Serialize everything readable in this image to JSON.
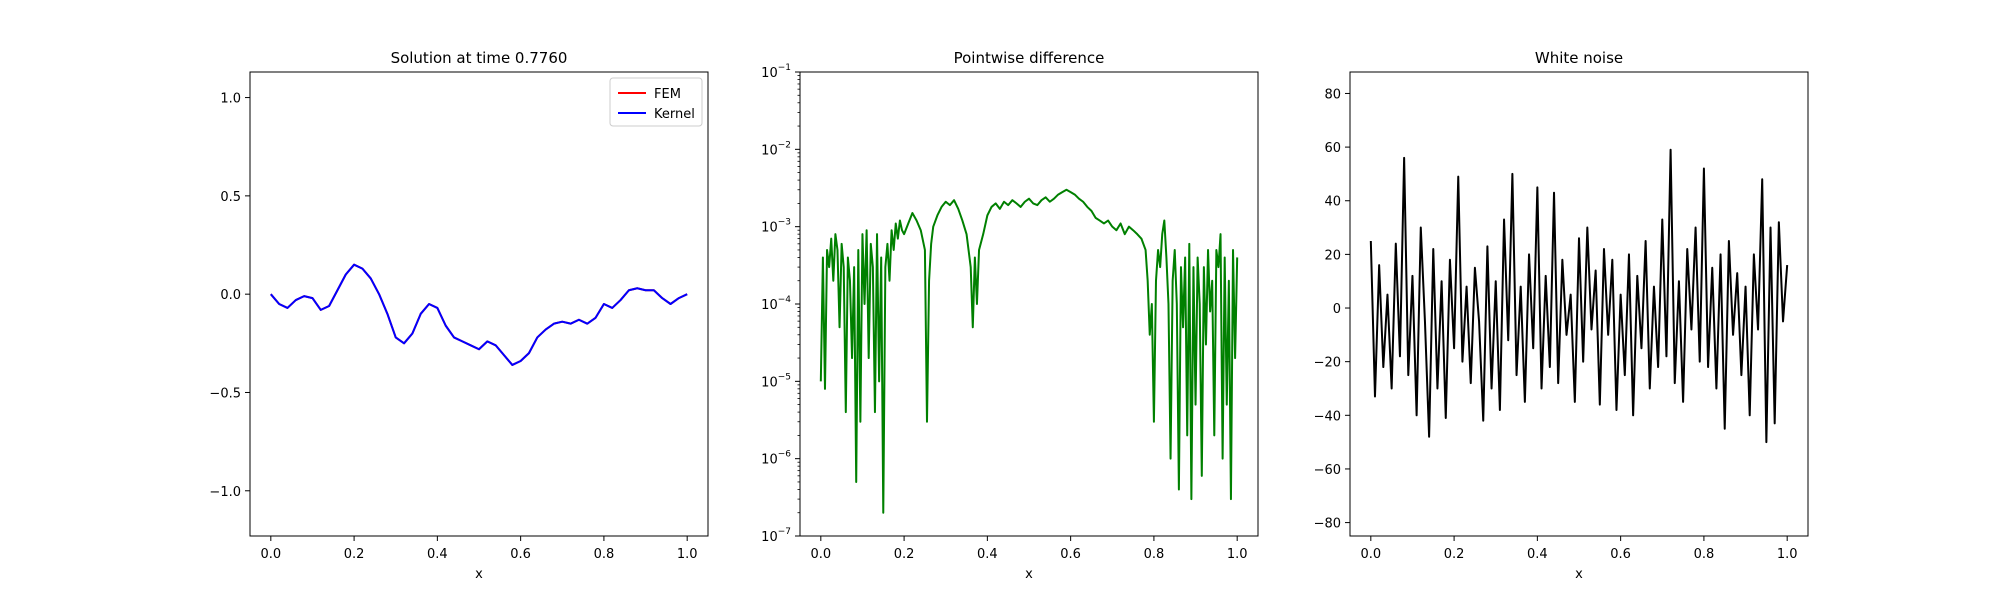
{
  "chart_data": [
    {
      "type": "line",
      "title": "Solution at time 0.7760",
      "xlabel": "x",
      "ylabel": "",
      "xlim": [
        -0.05,
        1.05
      ],
      "ylim": [
        -1.23,
        1.13
      ],
      "xticks": [
        0.0,
        0.2,
        0.4,
        0.6,
        0.8,
        1.0
      ],
      "xtick_labels": [
        "0.0",
        "0.2",
        "0.4",
        "0.6",
        "0.8",
        "1.0"
      ],
      "yticks": [
        -1.0,
        -0.5,
        0.0,
        0.5,
        1.0
      ],
      "ytick_labels": [
        "−1.0",
        "−0.5",
        "0.0",
        "0.5",
        "1.0"
      ],
      "grid": false,
      "legend_position": "top-right",
      "series": [
        {
          "name": "FEM",
          "color": "#ff0000",
          "x": [
            0.0,
            0.02,
            0.04,
            0.06,
            0.08,
            0.1,
            0.12,
            0.14,
            0.16,
            0.18,
            0.2,
            0.22,
            0.24,
            0.26,
            0.28,
            0.3,
            0.32,
            0.34,
            0.36,
            0.38,
            0.4,
            0.42,
            0.44,
            0.46,
            0.48,
            0.5,
            0.52,
            0.54,
            0.56,
            0.58,
            0.6,
            0.62,
            0.64,
            0.66,
            0.68,
            0.7,
            0.72,
            0.74,
            0.76,
            0.78,
            0.8,
            0.82,
            0.84,
            0.86,
            0.88,
            0.9,
            0.92,
            0.94,
            0.96,
            0.98,
            1.0
          ],
          "y": [
            0.0,
            -0.05,
            -0.07,
            -0.03,
            -0.01,
            -0.02,
            -0.08,
            -0.06,
            0.02,
            0.1,
            0.15,
            0.13,
            0.08,
            0.0,
            -0.1,
            -0.22,
            -0.25,
            -0.2,
            -0.1,
            -0.05,
            -0.07,
            -0.16,
            -0.22,
            -0.24,
            -0.26,
            -0.28,
            -0.24,
            -0.26,
            -0.31,
            -0.36,
            -0.34,
            -0.3,
            -0.22,
            -0.18,
            -0.15,
            -0.14,
            -0.15,
            -0.13,
            -0.15,
            -0.12,
            -0.05,
            -0.07,
            -0.03,
            0.02,
            0.03,
            0.02,
            0.02,
            -0.02,
            -0.05,
            -0.02,
            0.0
          ]
        },
        {
          "name": "Kernel",
          "color": "#0000ff",
          "x": [
            0.0,
            0.02,
            0.04,
            0.06,
            0.08,
            0.1,
            0.12,
            0.14,
            0.16,
            0.18,
            0.2,
            0.22,
            0.24,
            0.26,
            0.28,
            0.3,
            0.32,
            0.34,
            0.36,
            0.38,
            0.4,
            0.42,
            0.44,
            0.46,
            0.48,
            0.5,
            0.52,
            0.54,
            0.56,
            0.58,
            0.6,
            0.62,
            0.64,
            0.66,
            0.68,
            0.7,
            0.72,
            0.74,
            0.76,
            0.78,
            0.8,
            0.82,
            0.84,
            0.86,
            0.88,
            0.9,
            0.92,
            0.94,
            0.96,
            0.98,
            1.0
          ],
          "y": [
            0.0,
            -0.05,
            -0.07,
            -0.03,
            -0.01,
            -0.02,
            -0.08,
            -0.06,
            0.02,
            0.1,
            0.15,
            0.13,
            0.08,
            0.0,
            -0.1,
            -0.22,
            -0.25,
            -0.2,
            -0.1,
            -0.05,
            -0.07,
            -0.16,
            -0.22,
            -0.24,
            -0.26,
            -0.28,
            -0.24,
            -0.26,
            -0.31,
            -0.36,
            -0.34,
            -0.3,
            -0.22,
            -0.18,
            -0.15,
            -0.14,
            -0.15,
            -0.13,
            -0.15,
            -0.12,
            -0.05,
            -0.07,
            -0.03,
            0.02,
            0.03,
            0.02,
            0.02,
            -0.02,
            -0.05,
            -0.02,
            0.0
          ]
        }
      ]
    },
    {
      "type": "line",
      "title": "Pointwise difference",
      "xlabel": "x",
      "ylabel": "",
      "yscale": "log",
      "xlim": [
        -0.05,
        1.05
      ],
      "ylim": [
        1e-07,
        0.1
      ],
      "xticks": [
        0.0,
        0.2,
        0.4,
        0.6,
        0.8,
        1.0
      ],
      "xtick_labels": [
        "0.0",
        "0.2",
        "0.4",
        "0.6",
        "0.8",
        "1.0"
      ],
      "yticks": [
        1e-07,
        1e-06,
        1e-05,
        0.0001,
        0.001,
        0.01,
        0.1
      ],
      "ytick_bases": [
        "10",
        "10",
        "10",
        "10",
        "10",
        "10",
        "10"
      ],
      "ytick_exponents": [
        "−7",
        "−6",
        "−5",
        "−4",
        "−3",
        "−2",
        "−1"
      ],
      "grid": false,
      "series": [
        {
          "color": "#008000",
          "x": [
            0.0,
            0.005,
            0.01,
            0.015,
            0.02,
            0.025,
            0.03,
            0.035,
            0.04,
            0.045,
            0.05,
            0.055,
            0.06,
            0.065,
            0.07,
            0.075,
            0.08,
            0.085,
            0.09,
            0.095,
            0.1,
            0.105,
            0.11,
            0.115,
            0.12,
            0.125,
            0.13,
            0.135,
            0.14,
            0.145,
            0.15,
            0.155,
            0.16,
            0.165,
            0.17,
            0.175,
            0.18,
            0.185,
            0.19,
            0.195,
            0.2,
            0.21,
            0.22,
            0.23,
            0.24,
            0.25,
            0.255,
            0.26,
            0.265,
            0.27,
            0.28,
            0.29,
            0.3,
            0.31,
            0.32,
            0.33,
            0.34,
            0.35,
            0.36,
            0.365,
            0.37,
            0.375,
            0.38,
            0.39,
            0.4,
            0.41,
            0.42,
            0.43,
            0.44,
            0.45,
            0.46,
            0.47,
            0.48,
            0.49,
            0.5,
            0.51,
            0.52,
            0.53,
            0.54,
            0.55,
            0.56,
            0.57,
            0.58,
            0.59,
            0.6,
            0.61,
            0.62,
            0.63,
            0.64,
            0.65,
            0.66,
            0.67,
            0.68,
            0.69,
            0.7,
            0.71,
            0.72,
            0.73,
            0.74,
            0.75,
            0.76,
            0.77,
            0.78,
            0.785,
            0.79,
            0.795,
            0.8,
            0.805,
            0.81,
            0.815,
            0.82,
            0.825,
            0.83,
            0.835,
            0.84,
            0.845,
            0.85,
            0.855,
            0.86,
            0.865,
            0.87,
            0.875,
            0.88,
            0.885,
            0.89,
            0.895,
            0.9,
            0.905,
            0.91,
            0.915,
            0.92,
            0.925,
            0.93,
            0.935,
            0.94,
            0.945,
            0.95,
            0.955,
            0.96,
            0.965,
            0.97,
            0.975,
            0.98,
            0.985,
            0.99,
            0.995,
            1.0
          ],
          "y": [
            1e-05,
            0.0004,
            8e-06,
            0.0005,
            0.0003,
            0.0007,
            0.0002,
            0.0008,
            0.0005,
            5e-05,
            0.0006,
            0.0003,
            4e-06,
            0.0004,
            0.0002,
            2e-05,
            0.0003,
            5e-07,
            0.0005,
            3e-06,
            0.0008,
            0.0001,
            0.0009,
            2e-05,
            0.0006,
            0.0003,
            4e-06,
            0.0008,
            1e-05,
            0.0004,
            2e-07,
            0.0003,
            0.0006,
            0.0002,
            0.0009,
            0.0005,
            0.0011,
            0.0007,
            0.0012,
            0.0009,
            0.0008,
            0.0011,
            0.0015,
            0.0012,
            0.0009,
            0.0005,
            3e-06,
            0.0002,
            0.0006,
            0.001,
            0.0014,
            0.0018,
            0.0021,
            0.0019,
            0.0022,
            0.0017,
            0.0012,
            0.0008,
            0.0003,
            5e-05,
            0.0004,
            0.0001,
            0.0005,
            0.0008,
            0.0014,
            0.0018,
            0.002,
            0.0017,
            0.0021,
            0.0019,
            0.0022,
            0.002,
            0.0018,
            0.0021,
            0.0023,
            0.002,
            0.0019,
            0.0022,
            0.0024,
            0.0021,
            0.0023,
            0.0026,
            0.0028,
            0.003,
            0.0028,
            0.0026,
            0.0023,
            0.0021,
            0.0018,
            0.0016,
            0.0013,
            0.0012,
            0.0011,
            0.0012,
            0.001,
            0.0009,
            0.0011,
            0.0008,
            0.001,
            0.0009,
            0.0008,
            0.0007,
            0.0005,
            0.0002,
            4e-05,
            0.0001,
            3e-06,
            0.0002,
            0.0005,
            0.0003,
            0.0008,
            0.0012,
            0.0004,
            0.0001,
            1e-06,
            0.0002,
            0.0005,
            0.0001,
            4e-07,
            0.0003,
            5e-05,
            0.0004,
            2e-06,
            0.0006,
            3e-07,
            0.0003,
            5e-06,
            0.0004,
            0.0001,
            6e-07,
            0.0003,
            3e-05,
            0.0005,
            8e-05,
            0.0002,
            2e-06,
            0.0005,
            0.0003,
            0.0008,
            1e-06,
            0.0004,
            5e-06,
            0.0002,
            3e-07,
            0.0005,
            2e-05,
            0.0004
          ]
        }
      ]
    },
    {
      "type": "line",
      "title": "White noise",
      "xlabel": "x",
      "ylabel": "",
      "xlim": [
        -0.05,
        1.05
      ],
      "ylim": [
        -85,
        88
      ],
      "xticks": [
        0.0,
        0.2,
        0.4,
        0.6,
        0.8,
        1.0
      ],
      "xtick_labels": [
        "0.0",
        "0.2",
        "0.4",
        "0.6",
        "0.8",
        "1.0"
      ],
      "yticks": [
        -80,
        -60,
        -40,
        -20,
        0,
        20,
        40,
        60,
        80
      ],
      "ytick_labels": [
        "−80",
        "−60",
        "−40",
        "−20",
        "0",
        "20",
        "40",
        "60",
        "80"
      ],
      "grid": false,
      "series": [
        {
          "color": "#000000",
          "x": [
            0.0,
            0.01,
            0.02,
            0.03,
            0.04,
            0.05,
            0.06,
            0.07,
            0.08,
            0.09,
            0.1,
            0.11,
            0.12,
            0.13,
            0.14,
            0.15,
            0.16,
            0.17,
            0.18,
            0.19,
            0.2,
            0.21,
            0.22,
            0.23,
            0.24,
            0.25,
            0.26,
            0.27,
            0.28,
            0.29,
            0.3,
            0.31,
            0.32,
            0.33,
            0.34,
            0.35,
            0.36,
            0.37,
            0.38,
            0.39,
            0.4,
            0.41,
            0.42,
            0.43,
            0.44,
            0.45,
            0.46,
            0.47,
            0.48,
            0.49,
            0.5,
            0.51,
            0.52,
            0.53,
            0.54,
            0.55,
            0.56,
            0.57,
            0.58,
            0.59,
            0.6,
            0.61,
            0.62,
            0.63,
            0.64,
            0.65,
            0.66,
            0.67,
            0.68,
            0.69,
            0.7,
            0.71,
            0.72,
            0.73,
            0.74,
            0.75,
            0.76,
            0.77,
            0.78,
            0.79,
            0.8,
            0.81,
            0.82,
            0.83,
            0.84,
            0.85,
            0.86,
            0.87,
            0.88,
            0.89,
            0.9,
            0.91,
            0.92,
            0.93,
            0.94,
            0.95,
            0.96,
            0.97,
            0.98,
            0.99,
            1.0
          ],
          "y": [
            25,
            -33,
            16,
            -22,
            5,
            -30,
            24,
            -18,
            56,
            -25,
            12,
            -40,
            30,
            -5,
            -48,
            22,
            -30,
            10,
            -41,
            18,
            -15,
            49,
            -20,
            8,
            -28,
            15,
            -5,
            -42,
            23,
            -30,
            10,
            -38,
            33,
            -12,
            50,
            -25,
            8,
            -35,
            20,
            -15,
            45,
            -30,
            12,
            -22,
            43,
            -28,
            18,
            -10,
            5,
            -35,
            26,
            -20,
            30,
            -8,
            14,
            -36,
            22,
            -10,
            18,
            -38,
            5,
            -25,
            20,
            -40,
            12,
            -15,
            25,
            -30,
            8,
            -22,
            33,
            -18,
            59,
            -28,
            10,
            -35,
            22,
            -8,
            30,
            -20,
            52,
            -22,
            15,
            -30,
            20,
            -45,
            25,
            -10,
            13,
            -25,
            8,
            -40,
            20,
            -8,
            48,
            -50,
            30,
            -43,
            32,
            -5,
            16
          ]
        }
      ]
    }
  ]
}
